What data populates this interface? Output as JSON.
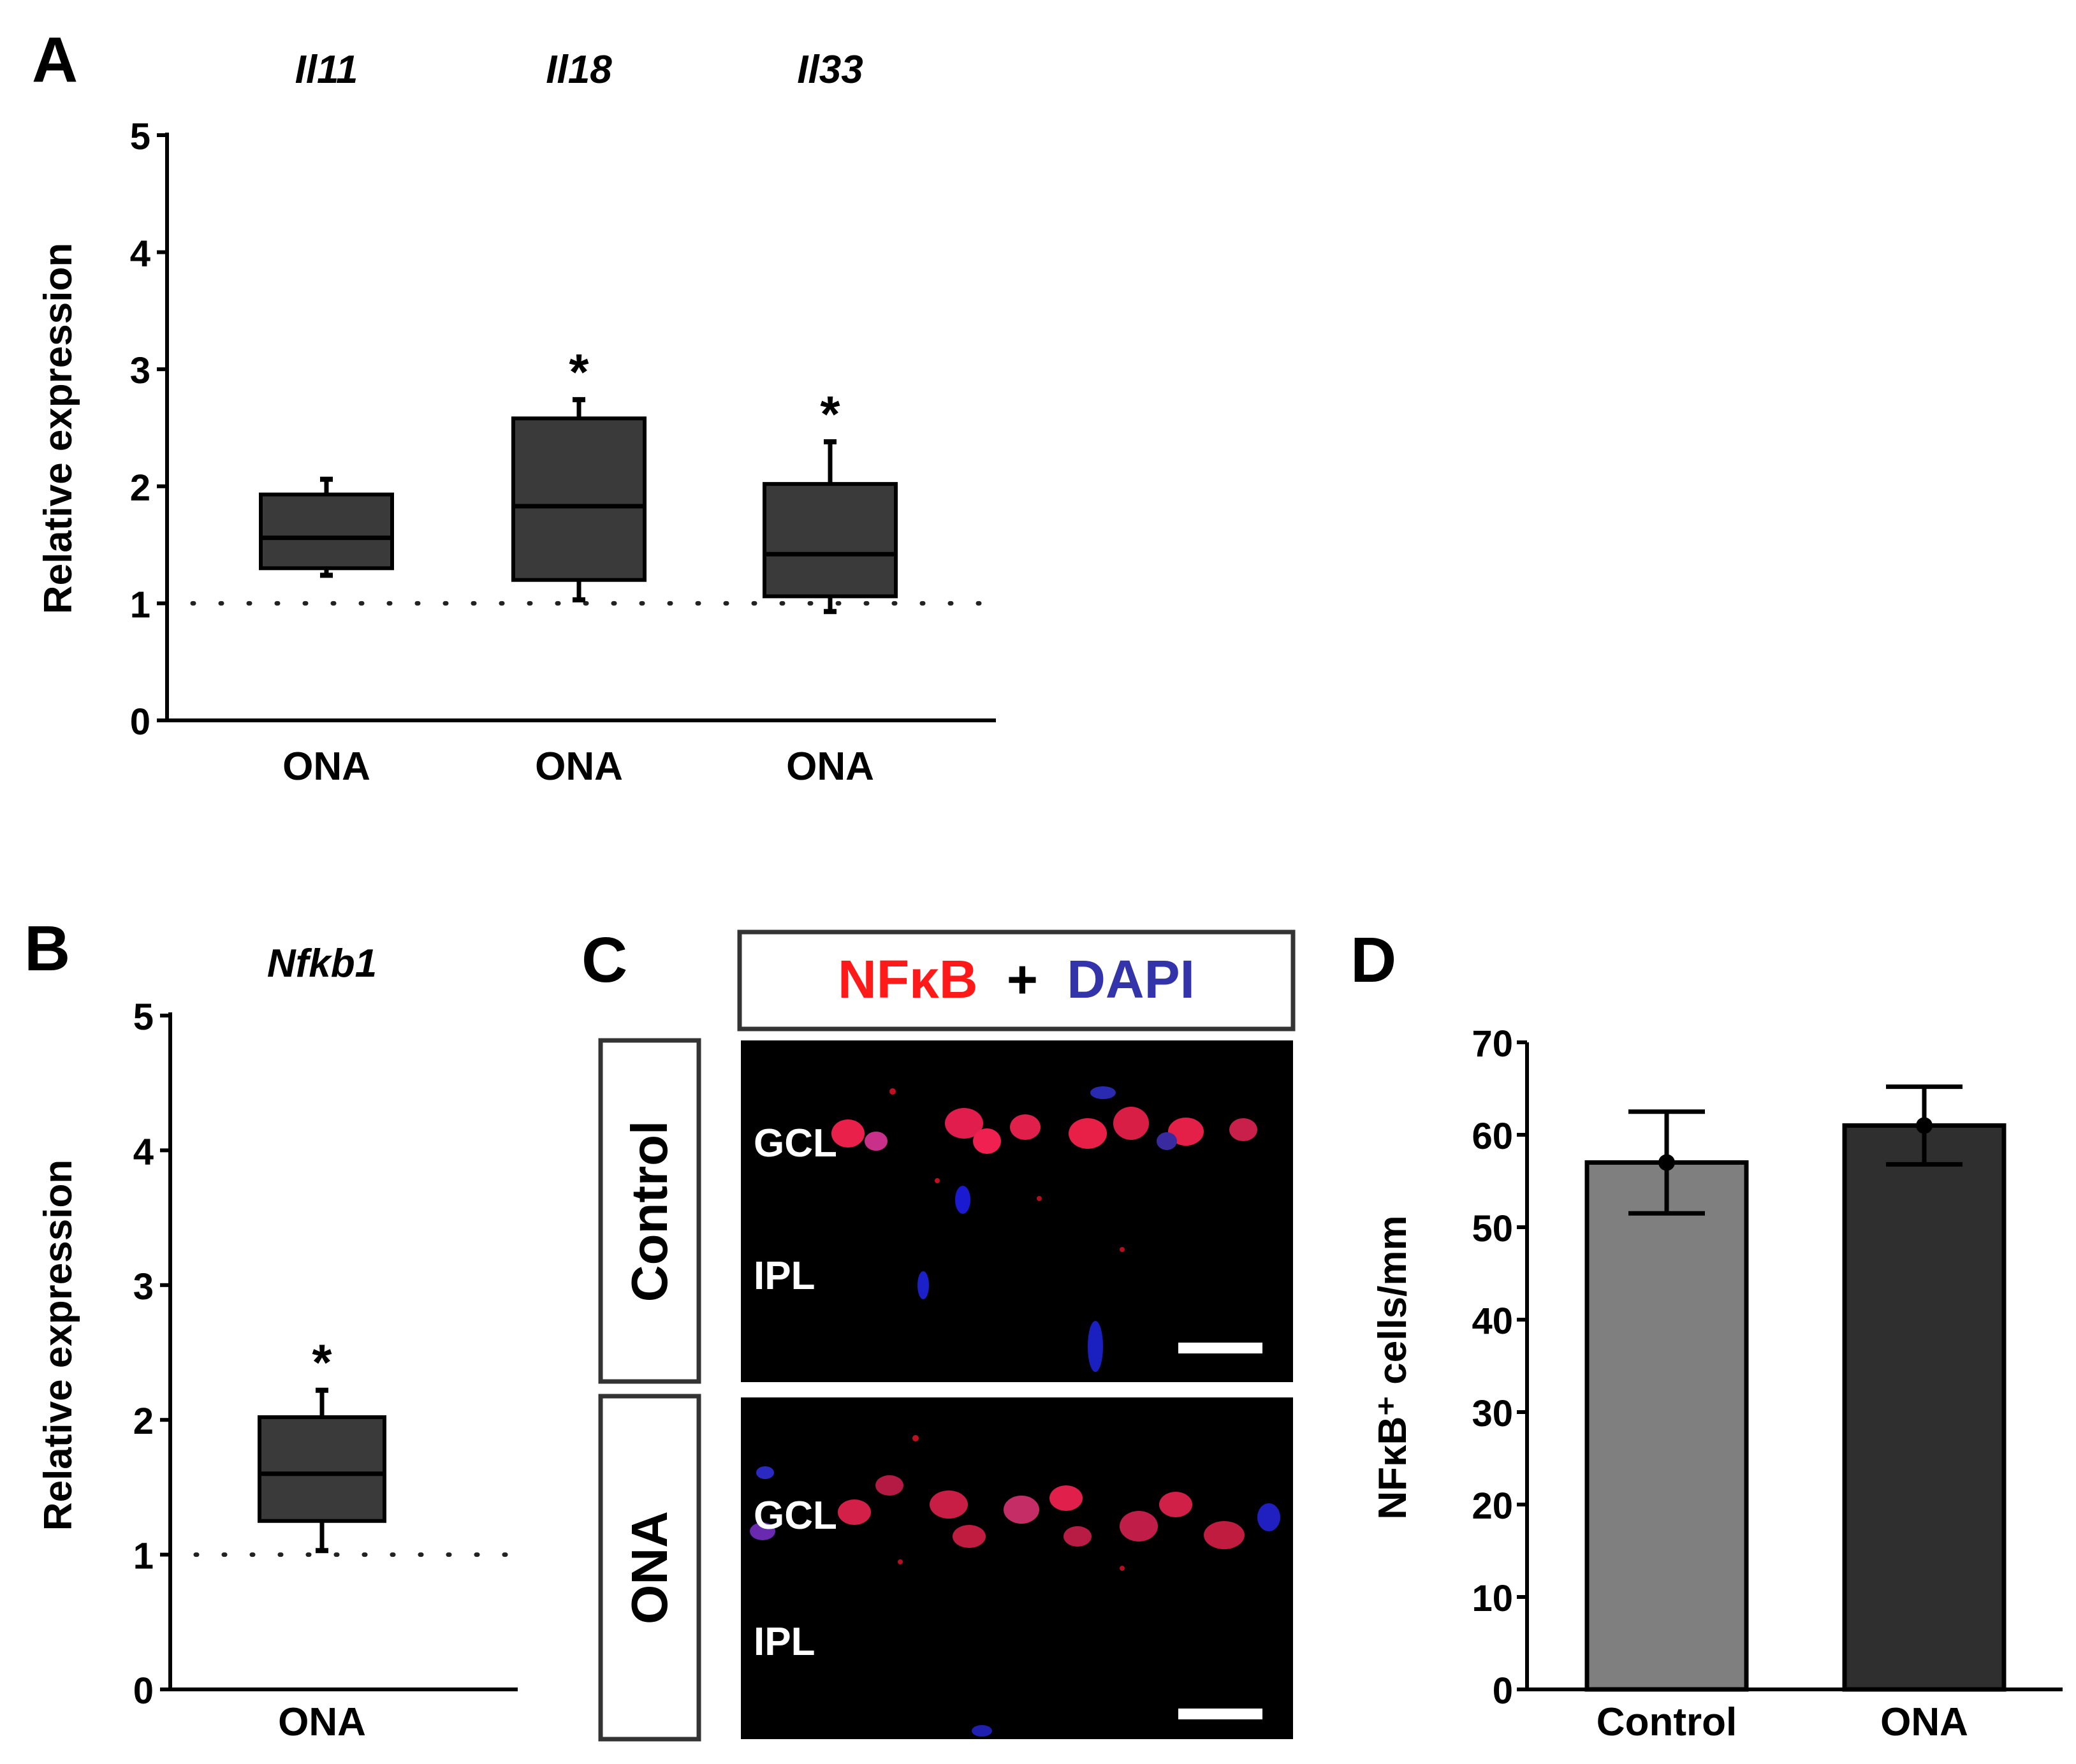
{
  "figure": {
    "panels": {
      "A": "A",
      "B": "B",
      "C": "C",
      "D": "D"
    }
  },
  "colors": {
    "box_fill": "#3a3a3a",
    "bar_control": "#7f7f7f",
    "bar_ona": "#2f2f2f",
    "axis": "#000000",
    "nfkb_red": "#ff1a1a",
    "dapi_blue": "#3333aa",
    "image_bg": "#000000"
  },
  "chart_data": [
    {
      "panel": "A",
      "type": "box",
      "ylabel": "Relative expression",
      "ylim": [
        0,
        5
      ],
      "yticks": [
        "0",
        "1",
        "2",
        "3",
        "4",
        "5"
      ],
      "reference_line": 1,
      "groups": [
        {
          "gene": "Il11",
          "label": "ONA",
          "min": 1.24,
          "q1": 1.3,
          "median": 1.56,
          "q3": 1.93,
          "max": 2.06,
          "significance": ""
        },
        {
          "gene": "Il18",
          "label": "ONA",
          "min": 1.03,
          "q1": 1.2,
          "median": 1.83,
          "q3": 2.58,
          "max": 2.74,
          "significance": "*"
        },
        {
          "gene": "Il33",
          "label": "ONA",
          "min": 0.93,
          "q1": 1.06,
          "median": 1.42,
          "q3": 2.02,
          "max": 2.38,
          "significance": "*"
        }
      ]
    },
    {
      "panel": "B",
      "type": "box",
      "ylabel": "Relative expression",
      "ylim": [
        0,
        5
      ],
      "yticks": [
        "0",
        "1",
        "2",
        "3",
        "4",
        "5"
      ],
      "reference_line": 1,
      "groups": [
        {
          "gene": "Nfkb1",
          "label": "ONA",
          "min": 1.03,
          "q1": 1.25,
          "median": 1.6,
          "q3": 2.02,
          "max": 2.22,
          "significance": "*"
        }
      ]
    },
    {
      "panel": "D",
      "type": "bar",
      "ylabel": "NFκB⁺ cells/mm",
      "ylim": [
        0,
        70
      ],
      "yticks": [
        "0",
        "10",
        "20",
        "30",
        "40",
        "50",
        "60",
        "70"
      ],
      "categories": [
        "Control",
        "ONA"
      ],
      "values": [
        57,
        61
      ],
      "errors": [
        5.5,
        4.2
      ]
    }
  ],
  "panel_c": {
    "header_left": "NFκB",
    "header_plus": "+",
    "header_right": "DAPI",
    "rows": [
      {
        "label": "Control",
        "gcl": "GCL",
        "ipl": "IPL"
      },
      {
        "label": "ONA",
        "gcl": "GCL",
        "ipl": "IPL"
      }
    ]
  }
}
